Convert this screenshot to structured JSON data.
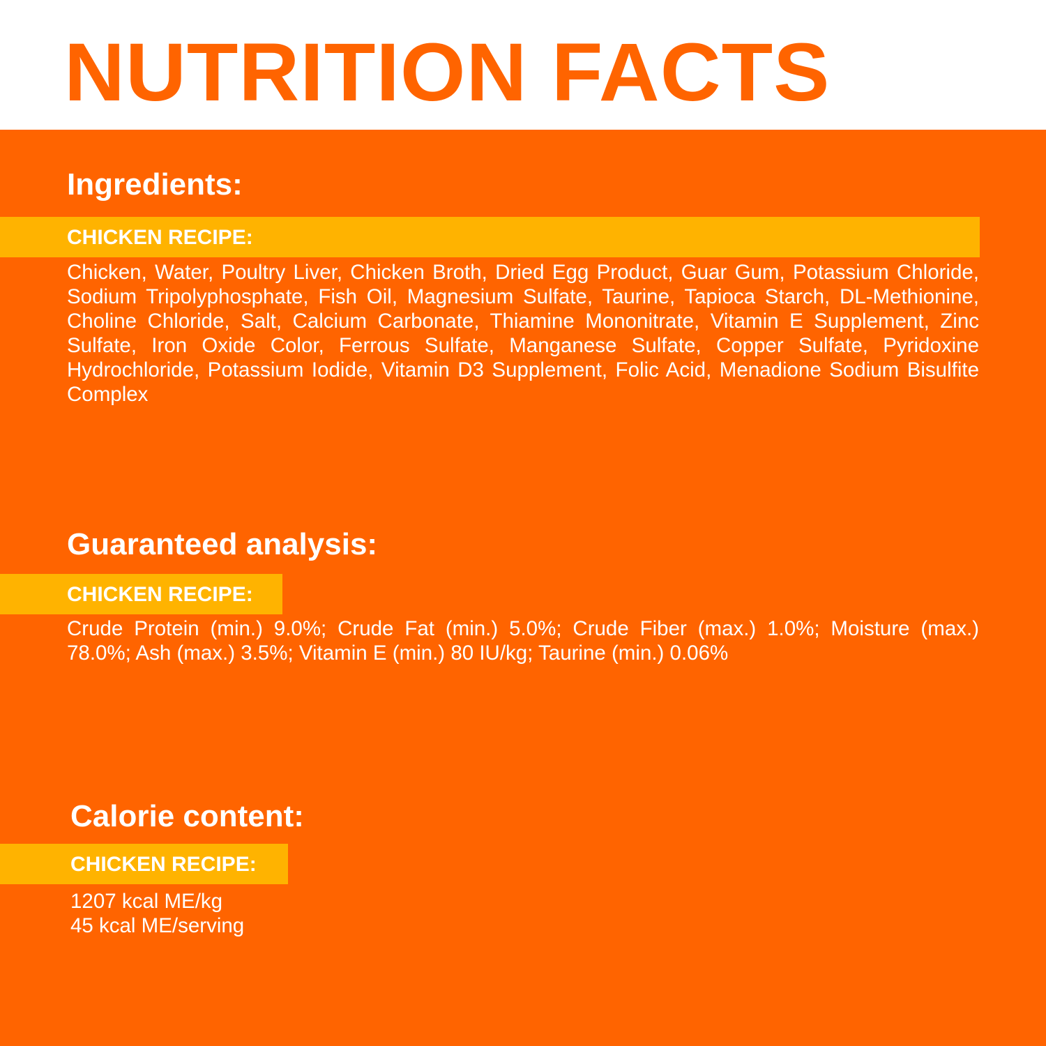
{
  "title": "NUTRITION FACTS",
  "colors": {
    "orange": "#FF6400",
    "yellow": "#FFB300",
    "white": "#FFFFFF"
  },
  "ingredients": {
    "heading": "Ingredients:",
    "recipe_label": "CHICKEN RECIPE:",
    "text": "Chicken, Water, Poultry Liver, Chicken Broth, Dried Egg Product, Guar Gum, Potassium Chloride, Sodium Tripolyphosphate, Fish Oil, Magnesium Sulfate, Taurine, Tapioca Starch, DL-Methionine, Choline Chloride, Salt, Calcium Carbonate, Thiamine Mononitrate, Vitamin E Supplement, Zinc Sulfate, Iron Oxide Color, Ferrous Sulfate, Manganese Sulfate, Copper Sulfate, Pyridoxine Hydrochloride, Potassium Iodide, Vitamin D3 Supplement, Folic Acid, Menadione Sodium Bisulfite Complex"
  },
  "analysis": {
    "heading": "Guaranteed analysis:",
    "recipe_label": "CHICKEN RECIPE:",
    "text": "Crude Protein (min.) 9.0%; Crude Fat (min.) 5.0%; Crude Fiber (max.) 1.0%; Moisture (max.) 78.0%; Ash (max.) 3.5%; Vitamin E (min.) 80 IU/kg; Taurine (min.) 0.06%"
  },
  "calories": {
    "heading": "Calorie content:",
    "recipe_label": "CHICKEN RECIPE:",
    "line1": "1207 kcal ME/kg",
    "line2": "45 kcal ME/serving"
  }
}
